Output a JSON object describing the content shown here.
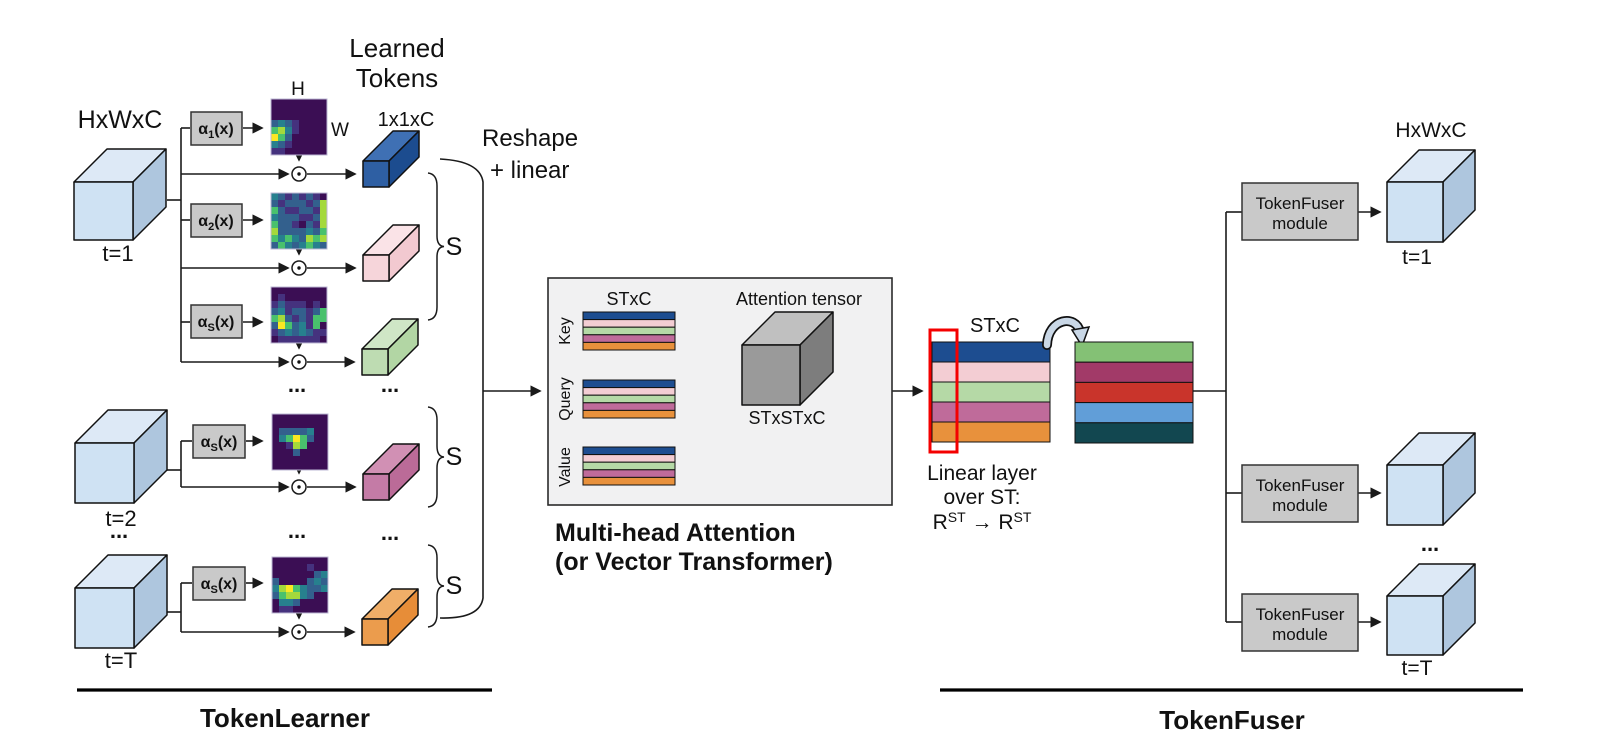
{
  "learned_tokens": {
    "line1": "Learned",
    "line2": "Tokens"
  },
  "left": {
    "input_label": "HxWxC",
    "t1": "t=1",
    "t2": "t=2",
    "tT": "t=T",
    "h": "H",
    "w": "W",
    "token_dim": "1x1xC",
    "s": "S",
    "dots": "...",
    "reshape_line1": "Reshape",
    "reshape_line2": "+ linear",
    "section": "TokenLearner"
  },
  "alpha": {
    "base": "α",
    "arg": "(x)",
    "sub1": "1",
    "sub2": "2",
    "subS": "S"
  },
  "mha": {
    "stxc": "STxC",
    "attention_tensor": "Attention tensor",
    "stxstxc": "STxSTxC",
    "key": "Key",
    "query": "Query",
    "value": "Value",
    "title_line1": "Multi-head Attention",
    "title_line2": "(or Vector Transformer)"
  },
  "fuser": {
    "stxc": "STxC",
    "linear_line1": "Linear layer",
    "linear_line2": "over ST:",
    "r": "R",
    "st": "ST",
    "map_arrow": "→",
    "module_line1": "TokenFuser",
    "module_line2": "module",
    "output_label": "HxWxC",
    "t1": "t=1",
    "tT": "t=T",
    "dots": "...",
    "section": "TokenFuser"
  },
  "colors": {
    "dark_red": "#a01717",
    "accent_red": "#f40000",
    "box_gray": "#c9c9c9",
    "mha_bg": "#f1f1f2",
    "swoosh": "#c9d7e6",
    "cube": {
      "front": "#cfe2f3",
      "top": "#dde9f6",
      "side": "#aec6de"
    },
    "tensor": {
      "front": "#9a9a9a",
      "top": "#c0c0c0",
      "side": "#7d7d7d"
    }
  },
  "tokens": {
    "blue": {
      "front": "#2e5fa3",
      "top": "#3f70b4",
      "side": "#1c4c8f"
    },
    "pink": {
      "front": "#f6d5da",
      "top": "#fae3e7",
      "side": "#f2c9d0"
    },
    "green": {
      "front": "#bedcb2",
      "top": "#cfe6c6",
      "side": "#b2d6a4"
    },
    "mauve": {
      "front": "#c47ba6",
      "top": "#d190b4",
      "side": "#bb6b98"
    },
    "orange": {
      "front": "#eb9c4d",
      "top": "#f0ae68",
      "side": "#e78d38"
    }
  },
  "stacks": {
    "kqv": [
      "#1d4d90",
      "#f3cdd3",
      "#b5d9a6",
      "#bf6b9a",
      "#e8913c"
    ],
    "fused": [
      "#84c175",
      "#a23a68",
      "#c9342b",
      "#619ed8",
      "#124750"
    ]
  },
  "heatmaps": {
    "palette": {
      "0": "#3b0e54",
      "1": "#45327e",
      "2": "#33608d",
      "3": "#27808e",
      "4": "#1fa187",
      "5": "#49c16d",
      "6": "#a4d93c",
      "7": "#fbe723"
    },
    "maps": {
      "m1": [
        "00000000",
        "00000000",
        "00000000",
        "23210000",
        "56310000",
        "75200000",
        "32100000",
        "11000000"
      ],
      "m2": [
        "32121210",
        "21222126",
        "52112216",
        "32221126",
        "52210216",
        "62222325",
        "53532656",
        "25323532"
      ],
      "m3": [
        "00000000",
        "01000000",
        "12111010",
        "23122125",
        "56212155",
        "27523150",
        "12323211",
        "01111110"
      ],
      "m4": [
        "00000000",
        "00000000",
        "02222300",
        "03575200",
        "00165000",
        "00020000",
        "00000000",
        "00000000"
      ],
      "m5": [
        "00000000",
        "00000100",
        "00000023",
        "20000232",
        "36753223",
        "25663200",
        "03320000",
        "01100000"
      ]
    }
  }
}
